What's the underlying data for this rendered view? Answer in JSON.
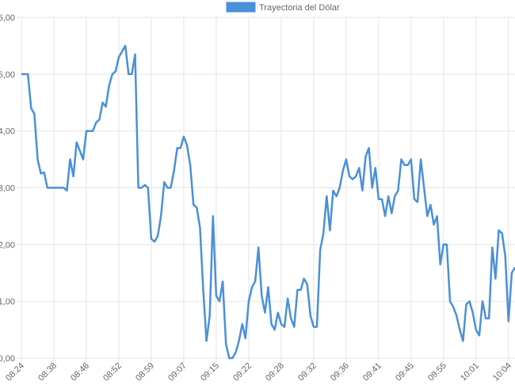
{
  "chart_data": {
    "type": "line",
    "series": [
      {
        "name": "Trayectoria del Dólar",
        "color": "#4a90d9",
        "values": [
          5.0,
          5.0,
          5.0,
          4.4,
          4.3,
          3.5,
          3.25,
          3.27,
          3.0,
          3.0,
          3.0,
          3.0,
          3.0,
          3.0,
          2.95,
          3.5,
          3.2,
          3.8,
          3.65,
          3.5,
          4.0,
          4.0,
          4.0,
          4.15,
          4.2,
          4.5,
          4.43,
          4.8,
          5.0,
          5.05,
          5.3,
          5.4,
          5.5,
          5.0,
          5.0,
          5.35,
          3.0,
          3.0,
          3.05,
          3.0,
          2.1,
          2.05,
          2.15,
          2.5,
          3.1,
          3.0,
          3.0,
          3.3,
          3.7,
          3.7,
          3.9,
          3.75,
          3.4,
          2.7,
          2.65,
          2.3,
          1.2,
          0.3,
          0.75,
          2.5,
          1.1,
          1.0,
          1.35,
          0.25,
          0.0,
          0.0,
          0.1,
          0.3,
          0.6,
          0.35,
          1.0,
          1.25,
          1.35,
          1.95,
          1.1,
          0.8,
          1.25,
          0.6,
          0.5,
          0.8,
          0.6,
          0.55,
          1.05,
          0.7,
          0.55,
          1.2,
          1.2,
          1.4,
          1.3,
          0.75,
          0.55,
          0.55,
          1.9,
          2.2,
          2.85,
          2.25,
          2.95,
          2.85,
          3.0,
          3.3,
          3.5,
          3.2,
          3.15,
          3.2,
          3.35,
          2.95,
          3.55,
          3.7,
          3.0,
          3.35,
          2.8,
          2.8,
          2.5,
          2.85,
          2.55,
          2.85,
          2.95,
          3.5,
          3.4,
          3.4,
          3.5,
          2.8,
          2.75,
          3.5,
          3.0,
          2.5,
          2.7,
          2.35,
          2.5,
          1.65,
          2.0,
          2.0,
          1.0,
          0.9,
          0.75,
          0.5,
          0.3,
          0.95,
          1.0,
          0.8,
          0.5,
          0.4,
          1.0,
          0.7,
          0.7,
          1.95,
          1.4,
          2.25,
          2.2,
          1.8,
          0.65,
          1.5,
          1.6
        ]
      }
    ],
    "categories": [
      "08:24",
      null,
      null,
      null,
      null,
      null,
      null,
      null,
      null,
      null,
      "08:38",
      null,
      null,
      null,
      null,
      null,
      null,
      null,
      null,
      null,
      "08:46",
      null,
      null,
      null,
      null,
      null,
      null,
      null,
      null,
      null,
      "08:52",
      null,
      null,
      null,
      null,
      null,
      null,
      null,
      null,
      null,
      "08:59",
      null,
      null,
      null,
      null,
      null,
      null,
      null,
      null,
      null,
      "09:07",
      null,
      null,
      null,
      null,
      null,
      null,
      null,
      null,
      null,
      "09:15",
      null,
      null,
      null,
      null,
      null,
      null,
      null,
      null,
      null,
      "09:22",
      null,
      null,
      null,
      null,
      null,
      null,
      null,
      null,
      null,
      "09:28",
      null,
      null,
      null,
      null,
      null,
      null,
      null,
      null,
      null,
      "09:32",
      null,
      null,
      null,
      null,
      null,
      null,
      null,
      null,
      null,
      "09:36",
      null,
      null,
      null,
      null,
      null,
      null,
      null,
      null,
      null,
      "09:41",
      null,
      null,
      null,
      null,
      null,
      null,
      null,
      null,
      null,
      "09:45",
      null,
      null,
      null,
      null,
      null,
      null,
      null,
      null,
      null,
      "09:55",
      null,
      null,
      null,
      null,
      null,
      null,
      null,
      null,
      null,
      "10:01",
      null,
      null,
      null,
      null,
      null,
      null,
      null,
      null,
      null,
      "10:04",
      null,
      null
    ],
    "ylim": [
      0,
      6
    ],
    "yticks": [
      {
        "value": 0,
        "label": "0,00"
      },
      {
        "value": 1,
        "label": "1,00"
      },
      {
        "value": 2,
        "label": "2,00"
      },
      {
        "value": 3,
        "label": "3,00"
      },
      {
        "value": 4,
        "label": "4,00"
      },
      {
        "value": 5,
        "label": "5,00"
      },
      {
        "value": 6,
        "label": "6,00"
      }
    ],
    "grid": true
  }
}
